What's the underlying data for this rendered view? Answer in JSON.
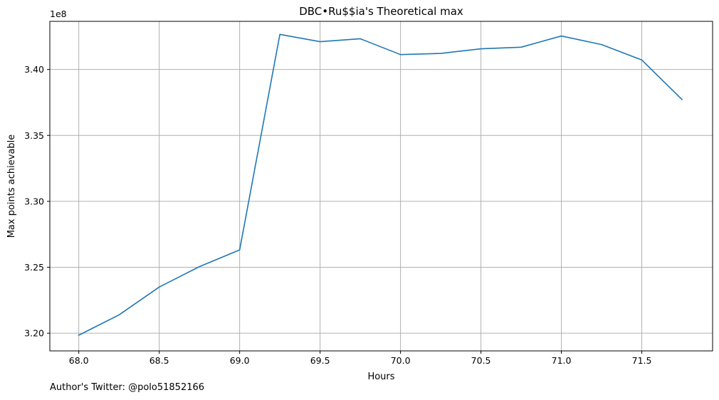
{
  "footer_text": "Author's Twitter: @polo51852166",
  "chart_data": {
    "type": "line",
    "title": "DBC•Ru$$ia's Theoretical max",
    "xlabel": "Hours",
    "ylabel": "Max points achievable",
    "y_offset_label": "1e8",
    "y_scale": 100000000,
    "xlim": [
      67.82,
      71.94
    ],
    "ylim": [
      3.1866,
      3.4365
    ],
    "x_ticks": [
      68.0,
      68.5,
      69.0,
      69.5,
      70.0,
      70.5,
      71.0,
      71.5
    ],
    "x_tick_labels": [
      "68.0",
      "68.5",
      "69.0",
      "69.5",
      "70.0",
      "70.5",
      "71.0",
      "71.5"
    ],
    "y_ticks": [
      3.2,
      3.25,
      3.3,
      3.35,
      3.4
    ],
    "y_tick_labels": [
      "3.20",
      "3.25",
      "3.30",
      "3.35",
      "3.40"
    ],
    "grid": true,
    "line_color": "#1f77b4",
    "grid_color": "#b0b0b0",
    "series": [
      {
        "x": [
          68.0,
          68.25,
          68.5,
          68.75,
          69.0,
          69.25,
          69.5,
          69.75,
          70.0,
          70.25,
          70.5,
          70.75,
          71.0,
          71.25,
          71.5,
          71.75
        ],
        "values": [
          3.1985,
          3.2139,
          3.235,
          3.2505,
          3.2632,
          3.4266,
          3.4211,
          3.4233,
          3.4113,
          3.4122,
          3.4157,
          3.4169,
          3.4254,
          3.4189,
          3.4072,
          3.3772
        ]
      }
    ]
  }
}
